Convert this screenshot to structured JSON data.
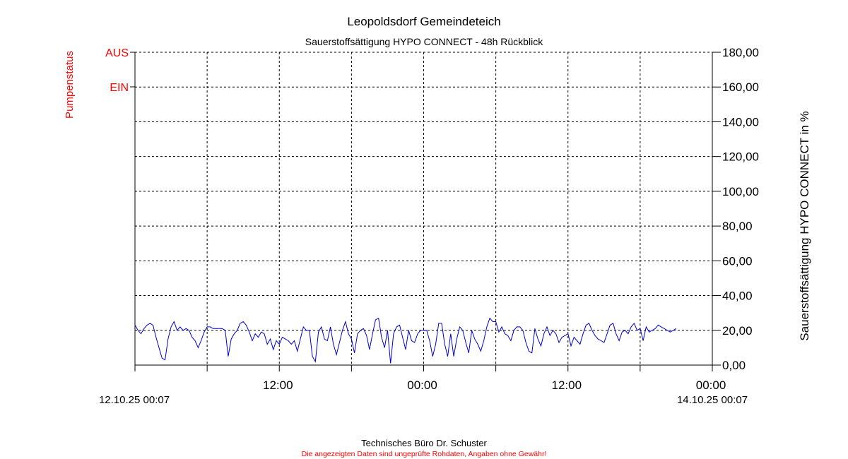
{
  "colors": {
    "background": "#ffffff",
    "axis": "#000000",
    "grid": "#000000",
    "series": "#0000cc",
    "pump_axis": "#ff0000",
    "disclaimer": "#ff0000"
  },
  "footer": {
    "company": "Technisches Büro Dr. Schuster",
    "disclaimer": "Die angezeigten Daten sind ungeprüfte Rohdaten, Angaben ohne Gewähr!"
  },
  "chart_data": {
    "type": "line",
    "title": "Leopoldsdorf Gemeindeteich",
    "subtitle": "Sauerstoffsättigung  HYPO CONNECT - 48h Rückblick",
    "ylabel": "Sauerstoffsättigung  HYPO CONNECT in %",
    "ylim": [
      0,
      180
    ],
    "y_ticks": [
      "0,00",
      "20,00",
      "40,00",
      "60,00",
      "80,00",
      "100,00",
      "120,00",
      "140,00",
      "160,00",
      "180,00"
    ],
    "x_start_label": "12.10.25 00:07",
    "x_end_label": "14.10.25 00:07",
    "x_ticks": [
      "12:00",
      "00:00",
      "12:00",
      "00:00"
    ],
    "xlim_hours": [
      0,
      48
    ],
    "grid": true,
    "left_axis": {
      "label": "Pumpenstatus",
      "levels": [
        "AUS",
        "EIN"
      ]
    },
    "series": [
      {
        "values": [
          [
            0.0,
            23
          ],
          [
            0.25,
            20
          ],
          [
            0.5,
            18
          ],
          [
            0.75,
            21
          ],
          [
            1.0,
            23
          ],
          [
            1.25,
            24
          ],
          [
            1.5,
            23
          ],
          [
            1.75,
            16
          ],
          [
            2.0,
            10
          ],
          [
            2.25,
            4
          ],
          [
            2.5,
            3
          ],
          [
            2.75,
            15
          ],
          [
            3.0,
            22
          ],
          [
            3.25,
            25
          ],
          [
            3.5,
            20
          ],
          [
            3.75,
            22
          ],
          [
            4.0,
            20
          ],
          [
            4.25,
            21
          ],
          [
            4.5,
            20
          ],
          [
            4.75,
            16
          ],
          [
            5.0,
            14
          ],
          [
            5.25,
            10
          ],
          [
            5.5,
            14
          ],
          [
            5.75,
            19
          ],
          [
            6.0,
            22
          ],
          [
            6.25,
            22
          ],
          [
            6.5,
            21
          ],
          [
            6.75,
            21
          ],
          [
            7.0,
            21
          ],
          [
            7.25,
            21
          ],
          [
            7.5,
            20
          ],
          [
            7.75,
            5
          ],
          [
            8.0,
            15
          ],
          [
            8.25,
            18
          ],
          [
            8.5,
            20
          ],
          [
            8.75,
            24
          ],
          [
            9.0,
            25
          ],
          [
            9.25,
            23
          ],
          [
            9.5,
            19
          ],
          [
            9.75,
            14
          ],
          [
            10.0,
            18
          ],
          [
            10.25,
            16
          ],
          [
            10.5,
            19
          ],
          [
            10.75,
            18
          ],
          [
            11.0,
            12
          ],
          [
            11.25,
            15
          ],
          [
            11.5,
            9
          ],
          [
            11.75,
            14
          ],
          [
            12.0,
            12
          ],
          [
            12.25,
            16
          ],
          [
            12.5,
            15
          ],
          [
            12.75,
            14
          ],
          [
            13.0,
            12
          ],
          [
            13.25,
            14
          ],
          [
            13.5,
            8
          ],
          [
            13.75,
            15
          ],
          [
            14.0,
            22
          ],
          [
            14.25,
            20
          ],
          [
            14.5,
            20
          ],
          [
            14.75,
            5
          ],
          [
            15.0,
            2
          ],
          [
            15.25,
            19
          ],
          [
            15.5,
            22
          ],
          [
            15.75,
            15
          ],
          [
            16.0,
            14
          ],
          [
            16.25,
            22
          ],
          [
            16.5,
            12
          ],
          [
            16.75,
            6
          ],
          [
            17.0,
            13
          ],
          [
            17.25,
            20
          ],
          [
            17.5,
            25
          ],
          [
            17.75,
            18
          ],
          [
            18.0,
            15
          ],
          [
            18.25,
            7
          ],
          [
            18.5,
            18
          ],
          [
            18.75,
            20
          ],
          [
            19.0,
            21
          ],
          [
            19.25,
            17
          ],
          [
            19.5,
            9
          ],
          [
            19.75,
            18
          ],
          [
            20.0,
            26
          ],
          [
            20.25,
            27
          ],
          [
            20.5,
            16
          ],
          [
            20.75,
            10
          ],
          [
            21.0,
            20
          ],
          [
            21.25,
            1
          ],
          [
            21.5,
            18
          ],
          [
            21.75,
            22
          ],
          [
            22.0,
            23
          ],
          [
            22.25,
            16
          ],
          [
            22.5,
            9
          ],
          [
            22.75,
            20
          ],
          [
            23.0,
            14
          ],
          [
            23.25,
            13
          ],
          [
            23.5,
            18
          ],
          [
            23.75,
            20
          ],
          [
            24.0,
            20
          ],
          [
            24.25,
            20
          ],
          [
            24.5,
            14
          ],
          [
            24.75,
            5
          ],
          [
            25.0,
            12
          ],
          [
            25.25,
            24
          ],
          [
            25.5,
            24
          ],
          [
            25.75,
            12
          ],
          [
            26.0,
            5
          ],
          [
            26.25,
            18
          ],
          [
            26.5,
            5
          ],
          [
            26.75,
            15
          ],
          [
            27.0,
            22
          ],
          [
            27.25,
            20
          ],
          [
            27.5,
            13
          ],
          [
            27.75,
            7
          ],
          [
            28.0,
            20
          ],
          [
            28.25,
            15
          ],
          [
            28.5,
            12
          ],
          [
            28.75,
            8
          ],
          [
            29.0,
            14
          ],
          [
            29.25,
            22
          ],
          [
            29.5,
            27
          ],
          [
            29.75,
            25
          ],
          [
            30.0,
            25
          ],
          [
            30.25,
            19
          ],
          [
            30.5,
            22
          ],
          [
            30.75,
            18
          ],
          [
            31.0,
            17
          ],
          [
            31.25,
            14
          ],
          [
            31.5,
            20
          ],
          [
            31.75,
            22
          ],
          [
            32.0,
            22
          ],
          [
            32.25,
            20
          ],
          [
            32.5,
            13
          ],
          [
            32.75,
            8
          ],
          [
            33.0,
            7
          ],
          [
            33.25,
            21
          ],
          [
            33.5,
            15
          ],
          [
            33.75,
            11
          ],
          [
            34.0,
            18
          ],
          [
            34.25,
            22
          ],
          [
            34.5,
            17
          ],
          [
            34.75,
            20
          ],
          [
            35.0,
            18
          ],
          [
            35.25,
            13
          ],
          [
            35.5,
            16
          ],
          [
            35.75,
            17
          ],
          [
            36.0,
            18
          ],
          [
            36.25,
            11
          ],
          [
            36.5,
            16
          ],
          [
            36.75,
            14
          ],
          [
            37.0,
            12
          ],
          [
            37.25,
            18
          ],
          [
            37.5,
            23
          ],
          [
            37.75,
            24
          ],
          [
            38.0,
            20
          ],
          [
            38.25,
            17
          ],
          [
            38.5,
            15
          ],
          [
            38.75,
            14
          ],
          [
            39.0,
            13
          ],
          [
            39.25,
            18
          ],
          [
            39.5,
            23
          ],
          [
            39.75,
            24
          ],
          [
            40.0,
            18
          ],
          [
            40.25,
            14
          ],
          [
            40.5,
            19
          ],
          [
            40.75,
            20
          ],
          [
            41.0,
            18
          ],
          [
            41.25,
            22
          ],
          [
            41.5,
            24
          ],
          [
            41.75,
            20
          ],
          [
            42.0,
            21
          ],
          [
            42.25,
            14
          ],
          [
            42.5,
            22
          ],
          [
            42.75,
            19
          ],
          [
            43.0,
            20
          ],
          [
            43.25,
            21
          ],
          [
            43.5,
            23
          ],
          [
            43.75,
            22
          ],
          [
            44.0,
            21
          ],
          [
            44.25,
            20
          ],
          [
            44.5,
            19
          ],
          [
            44.75,
            20
          ],
          [
            45.0,
            21
          ]
        ]
      }
    ]
  }
}
